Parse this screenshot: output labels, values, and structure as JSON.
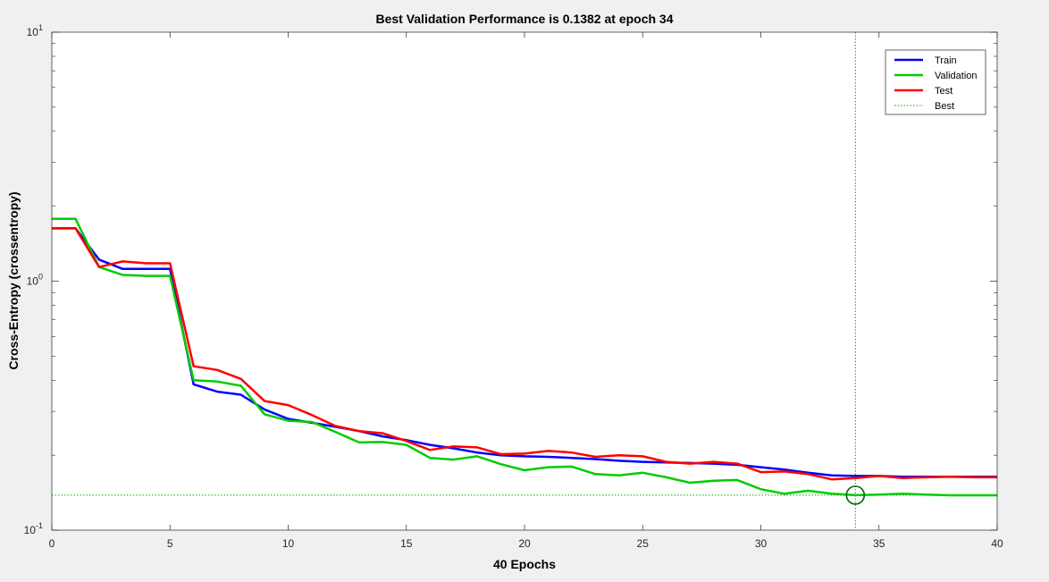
{
  "chart_data": {
    "type": "line",
    "title": "Best Validation Performance is 0.1382 at epoch 34",
    "xlabel": "40 Epochs",
    "ylabel": "Cross-Entropy  (crossentropy)",
    "xlim": [
      0,
      40
    ],
    "ylim": [
      0.1,
      10
    ],
    "yscale": "log",
    "xticks": [
      "0",
      "5",
      "10",
      "15",
      "20",
      "25",
      "30",
      "35",
      "40"
    ],
    "yticks": [
      {
        "base": "10",
        "exp": "-1"
      },
      {
        "base": "10",
        "exp": "0"
      },
      {
        "base": "10",
        "exp": "1"
      }
    ],
    "grid": false,
    "legend_position": "top-right",
    "x": [
      0,
      1,
      2,
      3,
      4,
      5,
      6,
      7,
      8,
      9,
      10,
      11,
      12,
      13,
      14,
      15,
      16,
      17,
      18,
      19,
      20,
      21,
      22,
      23,
      24,
      25,
      26,
      27,
      28,
      29,
      30,
      31,
      32,
      33,
      34,
      35,
      36,
      37,
      38,
      39,
      40
    ],
    "series": [
      {
        "name": "Train",
        "color": "#0000ff",
        "values": [
          1.63,
          1.63,
          1.22,
          1.12,
          1.12,
          1.12,
          0.385,
          0.36,
          0.35,
          0.305,
          0.28,
          0.27,
          0.26,
          0.25,
          0.238,
          0.23,
          0.22,
          0.213,
          0.205,
          0.2,
          0.198,
          0.197,
          0.195,
          0.193,
          0.19,
          0.188,
          0.187,
          0.186,
          0.185,
          0.183,
          0.179,
          0.175,
          0.17,
          0.166,
          0.165,
          0.165,
          0.164,
          0.164,
          0.164,
          0.164,
          0.164
        ]
      },
      {
        "name": "Validation",
        "color": "#00cc00",
        "values": [
          1.78,
          1.78,
          1.14,
          1.06,
          1.05,
          1.05,
          0.4,
          0.395,
          0.38,
          0.292,
          0.275,
          0.272,
          0.248,
          0.225,
          0.226,
          0.22,
          0.195,
          0.192,
          0.198,
          0.184,
          0.174,
          0.179,
          0.18,
          0.168,
          0.166,
          0.17,
          0.163,
          0.155,
          0.158,
          0.159,
          0.146,
          0.14,
          0.144,
          0.14,
          0.1382,
          0.139,
          0.14,
          0.139,
          0.138,
          0.138,
          0.138
        ]
      },
      {
        "name": "Test",
        "color": "#ff0000",
        "values": [
          1.63,
          1.63,
          1.14,
          1.2,
          1.18,
          1.18,
          0.455,
          0.44,
          0.405,
          0.33,
          0.318,
          0.29,
          0.262,
          0.25,
          0.245,
          0.228,
          0.21,
          0.217,
          0.215,
          0.202,
          0.203,
          0.208,
          0.205,
          0.197,
          0.2,
          0.198,
          0.188,
          0.185,
          0.188,
          0.185,
          0.171,
          0.172,
          0.168,
          0.16,
          0.162,
          0.165,
          0.162,
          0.163,
          0.164,
          0.163,
          0.163
        ]
      }
    ],
    "best": {
      "name": "Best",
      "epoch": 34,
      "value": 0.1382,
      "color": "#00aa00"
    }
  }
}
